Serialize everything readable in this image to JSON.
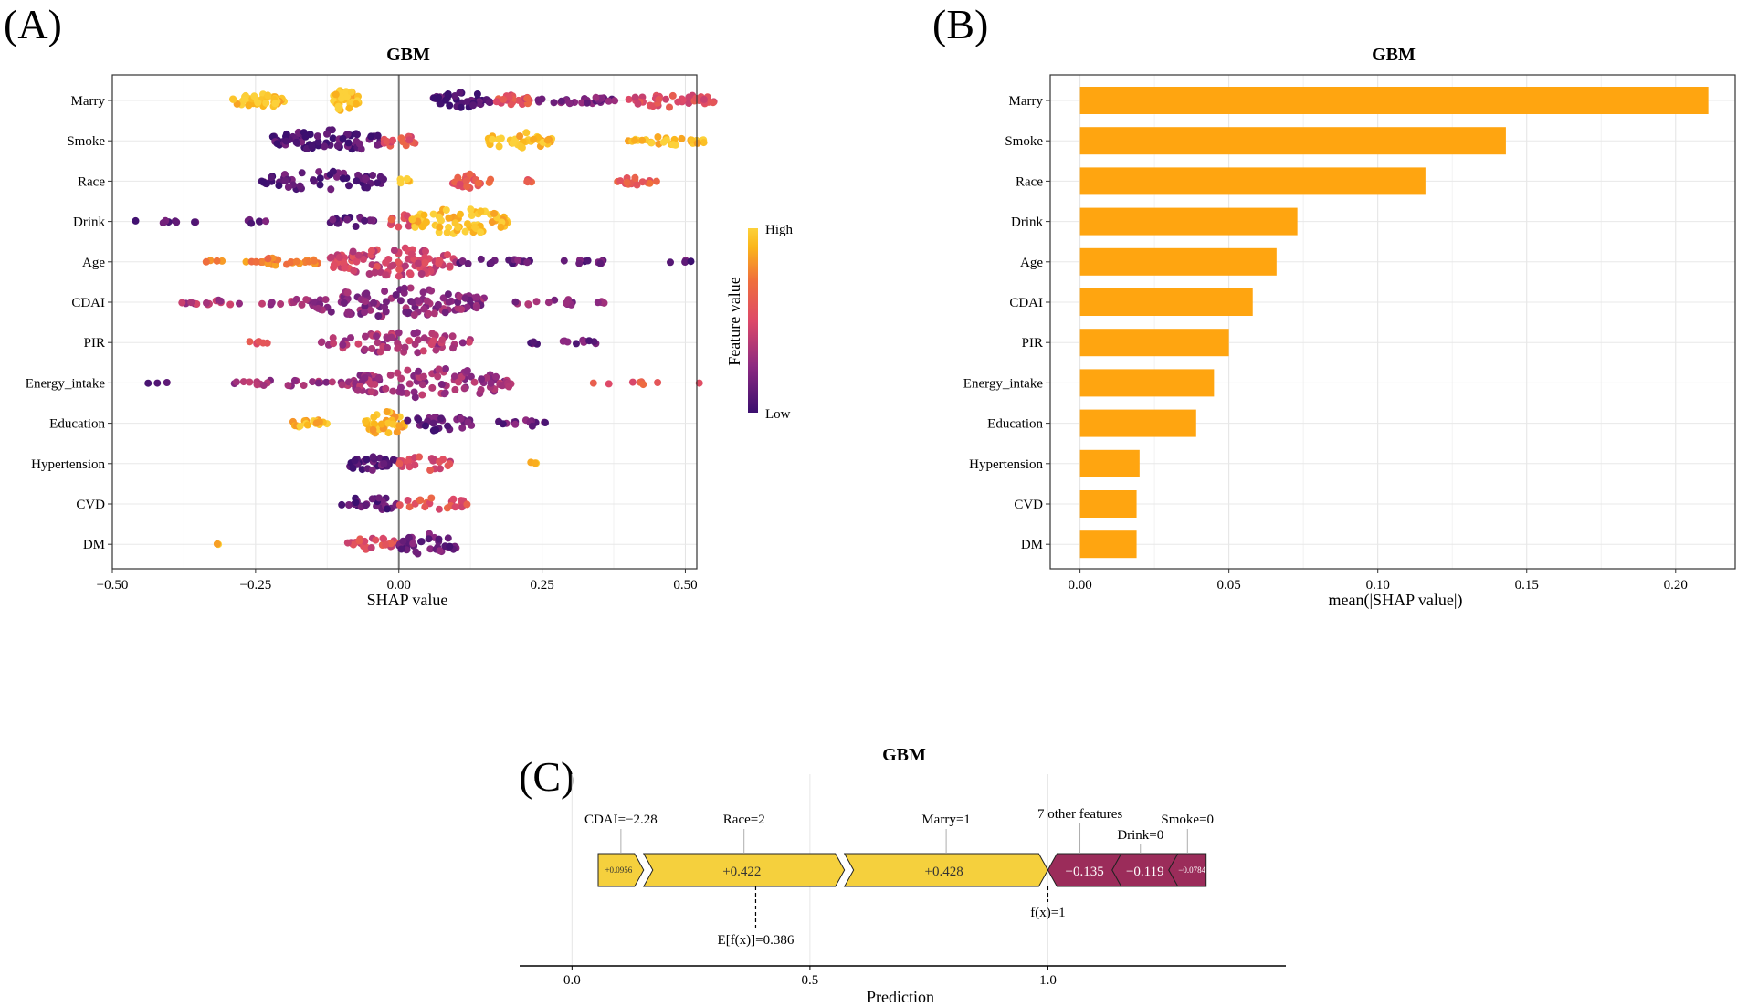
{
  "chart_data": [
    {
      "panel": "(A)",
      "type": "scatter",
      "subtype": "shap-beeswarm",
      "title": "GBM",
      "xlabel": "SHAP value",
      "ylabel": "",
      "xlim": [
        -0.5,
        0.52
      ],
      "xticks": [
        -0.5,
        -0.25,
        0.0,
        0.25,
        0.5
      ],
      "xtick_labels": [
        "−0.50",
        "−0.25",
        "0.00",
        "0.25",
        "0.50"
      ],
      "grid": true,
      "colorbar": {
        "title": "Feature value",
        "high": "High",
        "low": "Low",
        "colors": [
          "#3b0f6f",
          "#8c2981",
          "#de4968",
          "#f0703b",
          "#fbb61a",
          "#fcd13a"
        ]
      },
      "features": [
        "Marry",
        "Smoke",
        "Race",
        "Drink",
        "Age",
        "CDAI",
        "PIR",
        "Energy_intake",
        "Education",
        "Hypertension",
        "CVD",
        "DM"
      ],
      "clusters": [
        [
          [
            -0.29,
            -0.2,
            0.95,
            0.5,
            45
          ],
          [
            -0.12,
            -0.07,
            0.95,
            0.7,
            40
          ],
          [
            0.06,
            0.16,
            0.05,
            0.55,
            45
          ],
          [
            0.17,
            0.23,
            0.55,
            0.4,
            25
          ],
          [
            0.24,
            0.38,
            0.2,
            0.25,
            30
          ],
          [
            0.4,
            0.55,
            0.5,
            0.45,
            40
          ]
        ],
        [
          [
            -0.22,
            -0.02,
            0.08,
            0.75,
            70
          ],
          [
            -0.03,
            0.03,
            0.55,
            0.4,
            15
          ],
          [
            0.15,
            0.27,
            0.95,
            0.55,
            35
          ],
          [
            0.4,
            0.54,
            0.95,
            0.3,
            30
          ]
        ],
        [
          [
            -0.24,
            -0.02,
            0.1,
            0.65,
            55
          ],
          [
            0.0,
            0.02,
            0.95,
            0.2,
            5
          ],
          [
            0.09,
            0.16,
            0.6,
            0.45,
            25
          ],
          [
            0.19,
            0.24,
            0.62,
            0.1,
            5
          ],
          [
            0.38,
            0.45,
            0.6,
            0.25,
            18
          ]
        ],
        [
          [
            -0.46,
            -0.33,
            0.1,
            0.12,
            8
          ],
          [
            -0.28,
            -0.22,
            0.1,
            0.15,
            6
          ],
          [
            -0.12,
            -0.04,
            0.1,
            0.35,
            18
          ],
          [
            -0.02,
            0.03,
            0.55,
            0.45,
            12
          ],
          [
            0.02,
            0.19,
            0.95,
            0.85,
            75
          ]
        ],
        [
          [
            -0.34,
            -0.12,
            0.75,
            0.25,
            30
          ],
          [
            -0.12,
            0.1,
            0.45,
            0.95,
            110
          ],
          [
            0.1,
            0.23,
            0.15,
            0.2,
            18
          ],
          [
            0.28,
            0.38,
            0.1,
            0.15,
            10
          ],
          [
            0.47,
            0.52,
            0.1,
            0.1,
            4
          ]
        ],
        [
          [
            -0.38,
            -0.18,
            0.35,
            0.2,
            22
          ],
          [
            -0.18,
            0.15,
            0.25,
            0.95,
            120
          ],
          [
            0.18,
            0.36,
            0.25,
            0.2,
            18
          ]
        ],
        [
          [
            -0.28,
            -0.2,
            0.55,
            0.1,
            6
          ],
          [
            -0.14,
            0.13,
            0.35,
            0.7,
            65
          ],
          [
            0.23,
            0.35,
            0.15,
            0.2,
            14
          ]
        ],
        [
          [
            -0.44,
            -0.4,
            0.15,
            0.05,
            3
          ],
          [
            -0.29,
            -0.1,
            0.3,
            0.2,
            22
          ],
          [
            -0.1,
            0.2,
            0.3,
            0.95,
            110
          ],
          [
            0.3,
            0.54,
            0.6,
            0.1,
            8
          ]
        ],
        [
          [
            -0.19,
            -0.12,
            0.92,
            0.3,
            18
          ],
          [
            -0.06,
            0.01,
            0.9,
            0.8,
            35
          ],
          [
            0.01,
            0.13,
            0.12,
            0.5,
            28
          ],
          [
            0.17,
            0.26,
            0.15,
            0.3,
            14
          ]
        ],
        [
          [
            -0.09,
            0.0,
            0.1,
            0.55,
            30
          ],
          [
            0.0,
            0.09,
            0.5,
            0.45,
            22
          ],
          [
            0.23,
            0.24,
            0.95,
            0.2,
            3
          ]
        ],
        [
          [
            -0.1,
            0.0,
            0.1,
            0.5,
            28
          ],
          [
            0.0,
            0.12,
            0.55,
            0.45,
            22
          ]
        ],
        [
          [
            -0.32,
            -0.31,
            0.95,
            0.05,
            2
          ],
          [
            -0.09,
            0.0,
            0.5,
            0.45,
            25
          ],
          [
            0.0,
            0.1,
            0.15,
            0.75,
            35
          ]
        ]
      ]
    },
    {
      "panel": "(B)",
      "type": "bar",
      "orientation": "horizontal",
      "title": "GBM",
      "xlabel": "mean(|SHAP value|)",
      "ylabel": "",
      "xlim": [
        -0.01,
        0.22
      ],
      "xticks": [
        0.0,
        0.05,
        0.1,
        0.15,
        0.2
      ],
      "xtick_labels": [
        "0.00",
        "0.05",
        "0.10",
        "0.15",
        "0.20"
      ],
      "grid": true,
      "bar_color": "#ffa510",
      "categories": [
        "Marry",
        "Smoke",
        "Race",
        "Drink",
        "Age",
        "CDAI",
        "PIR",
        "Energy_intake",
        "Education",
        "Hypertension",
        "CVD",
        "DM"
      ],
      "values": [
        0.211,
        0.143,
        0.116,
        0.073,
        0.066,
        0.058,
        0.05,
        0.045,
        0.039,
        0.02,
        0.019,
        0.019
      ]
    },
    {
      "panel": "(C)",
      "type": "bar",
      "subtype": "shap-force-waterfall",
      "title": "GBM",
      "xlabel": "Prediction",
      "xlim": [
        -0.11,
        1.5
      ],
      "xticks": [
        0.0,
        0.5,
        1.0
      ],
      "xtick_labels": [
        "0.0",
        "0.5",
        "1.0"
      ],
      "base_value": 0.386,
      "base_label": "E[f(x)]=0.386",
      "output_value": 1.0,
      "output_label": "f(x)=1",
      "positive_color": "#f5d03d",
      "negative_color": "#9b2c5a",
      "segments": [
        {
          "feature": "CDAI=−2.28",
          "value": 0.0956,
          "value_label": "+0.0956",
          "start": 0.055,
          "end": 0.1506
        },
        {
          "feature": "Race=2",
          "value": 0.422,
          "value_label": "+0.422",
          "start": 0.1506,
          "end": 0.5726
        },
        {
          "feature": "Marry=1",
          "value": 0.428,
          "value_label": "+0.428",
          "start": 0.5726,
          "end": 1.0
        },
        {
          "feature": "7 other features",
          "value": -0.135,
          "value_label": "−0.135",
          "start": 1.0,
          "end": 1.135
        },
        {
          "feature": "Drink=0",
          "value": -0.119,
          "value_label": "−0.119",
          "start": 1.135,
          "end": 1.254
        },
        {
          "feature": "Smoke=0",
          "value": -0.0784,
          "value_label": "−0.0784",
          "start": 1.254,
          "end": 1.3324
        }
      ]
    }
  ]
}
